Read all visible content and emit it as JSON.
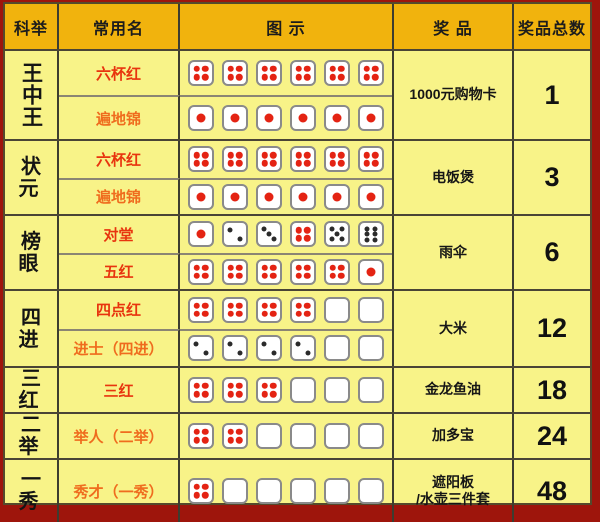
{
  "colors": {
    "background": "#9e150c",
    "header_bg": "#f1b30d",
    "body_bg": "#f8f388",
    "grid_dark": "#3d3d30",
    "grid_light": "#8b8573",
    "pip_red": "#e42313",
    "pip_black": "#2b2b2b",
    "name_red": "#e8340e",
    "name_orange": "#ef6c1e"
  },
  "header": {
    "rank": "科举",
    "name": "常用名",
    "diagram": "图 示",
    "prize": "奖 品",
    "total": "奖品总数"
  },
  "groups": [
    {
      "rank": "王中王",
      "prize": "1000元购物卡",
      "total": "1",
      "rows": [
        {
          "name": "六杯红",
          "color": "#e8340e",
          "dice": [
            {
              "v": 4,
              "c": "red"
            },
            {
              "v": 4,
              "c": "red"
            },
            {
              "v": 4,
              "c": "red"
            },
            {
              "v": 4,
              "c": "red"
            },
            {
              "v": 4,
              "c": "red"
            },
            {
              "v": 4,
              "c": "red"
            }
          ]
        },
        {
          "name": "遍地锦",
          "color": "#ef6c1e",
          "dice": [
            {
              "v": 1,
              "c": "red"
            },
            {
              "v": 1,
              "c": "red"
            },
            {
              "v": 1,
              "c": "red"
            },
            {
              "v": 1,
              "c": "red"
            },
            {
              "v": 1,
              "c": "red"
            },
            {
              "v": 1,
              "c": "red"
            }
          ]
        }
      ]
    },
    {
      "rank": "状元",
      "prize": "电饭煲",
      "total": "3",
      "rows": [
        {
          "name": "六杯红",
          "color": "#e8340e",
          "dice": [
            {
              "v": 4,
              "c": "red"
            },
            {
              "v": 4,
              "c": "red"
            },
            {
              "v": 4,
              "c": "red"
            },
            {
              "v": 4,
              "c": "red"
            },
            {
              "v": 4,
              "c": "red"
            },
            {
              "v": 4,
              "c": "red"
            }
          ]
        },
        {
          "name": "遍地锦",
          "color": "#ef6c1e",
          "dice": [
            {
              "v": 1,
              "c": "red"
            },
            {
              "v": 1,
              "c": "red"
            },
            {
              "v": 1,
              "c": "red"
            },
            {
              "v": 1,
              "c": "red"
            },
            {
              "v": 1,
              "c": "red"
            },
            {
              "v": 1,
              "c": "red"
            }
          ]
        }
      ]
    },
    {
      "rank": "榜眼",
      "prize": "雨伞",
      "total": "6",
      "rows": [
        {
          "name": "对堂",
          "color": "#e8340e",
          "dice": [
            {
              "v": 1,
              "c": "red"
            },
            {
              "v": 2,
              "c": "black"
            },
            {
              "v": 3,
              "c": "black"
            },
            {
              "v": 4,
              "c": "red"
            },
            {
              "v": 5,
              "c": "black"
            },
            {
              "v": 6,
              "c": "black"
            }
          ]
        },
        {
          "name": "五红",
          "color": "#e8340e",
          "dice": [
            {
              "v": 4,
              "c": "red"
            },
            {
              "v": 4,
              "c": "red"
            },
            {
              "v": 4,
              "c": "red"
            },
            {
              "v": 4,
              "c": "red"
            },
            {
              "v": 4,
              "c": "red"
            },
            {
              "v": 1,
              "c": "red"
            }
          ]
        }
      ]
    },
    {
      "rank": "四进",
      "prize": "大米",
      "total": "12",
      "rows": [
        {
          "name": "四点红",
          "color": "#e8340e",
          "dice": [
            {
              "v": 4,
              "c": "red"
            },
            {
              "v": 4,
              "c": "red"
            },
            {
              "v": 4,
              "c": "red"
            },
            {
              "v": 4,
              "c": "red"
            },
            {
              "v": 0
            },
            {
              "v": 0
            }
          ]
        },
        {
          "name": "进士（四进）",
          "color": "#ef6c1e",
          "dice": [
            {
              "v": 2,
              "c": "black"
            },
            {
              "v": 2,
              "c": "black"
            },
            {
              "v": 2,
              "c": "black"
            },
            {
              "v": 2,
              "c": "black"
            },
            {
              "v": 0
            },
            {
              "v": 0
            }
          ]
        }
      ]
    },
    {
      "rank": "三红",
      "prize": "金龙鱼油",
      "total": "18",
      "rows": [
        {
          "name": "三红",
          "color": "#e8340e",
          "dice": [
            {
              "v": 4,
              "c": "red"
            },
            {
              "v": 4,
              "c": "red"
            },
            {
              "v": 4,
              "c": "red"
            },
            {
              "v": 0
            },
            {
              "v": 0
            },
            {
              "v": 0
            }
          ]
        }
      ]
    },
    {
      "rank": "二举",
      "prize": "加多宝",
      "total": "24",
      "rows": [
        {
          "name": "举人（二举）",
          "color": "#ef6c1e",
          "dice": [
            {
              "v": 4,
              "c": "red"
            },
            {
              "v": 4,
              "c": "red"
            },
            {
              "v": 0
            },
            {
              "v": 0
            },
            {
              "v": 0
            },
            {
              "v": 0
            }
          ]
        }
      ]
    },
    {
      "rank": "一秀",
      "prize": "遮阳板\n/水壶三件套",
      "total": "48",
      "rows": [
        {
          "name": "秀才（一秀）",
          "color": "#ef6c1e",
          "dice": [
            {
              "v": 4,
              "c": "red"
            },
            {
              "v": 0
            },
            {
              "v": 0
            },
            {
              "v": 0
            },
            {
              "v": 0
            },
            {
              "v": 0
            }
          ]
        }
      ]
    }
  ]
}
